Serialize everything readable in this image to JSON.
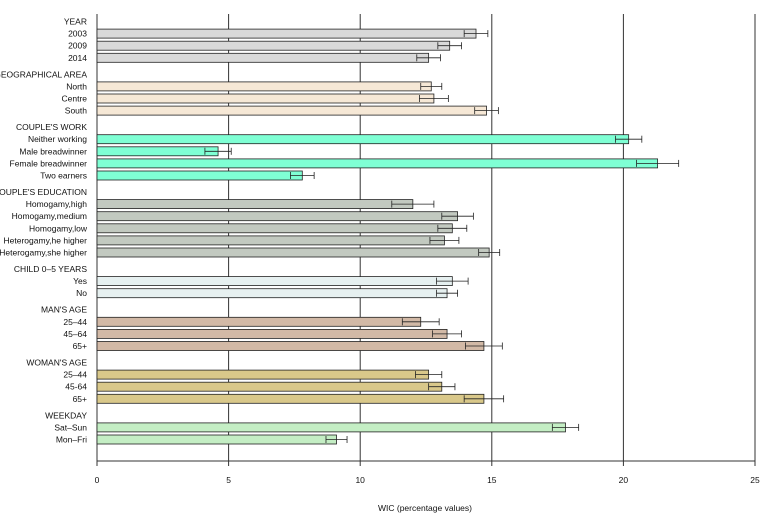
{
  "chart_data": {
    "type": "bar",
    "orientation": "horizontal",
    "xlabel": "WIC (percentage values)",
    "xlim": [
      0,
      25
    ],
    "xticks": [
      0,
      5,
      10,
      15,
      20,
      25
    ],
    "gridlines": [
      5,
      10,
      15,
      20
    ],
    "groups": [
      {
        "title": "YEAR",
        "color": "#d9d9d9",
        "bars": [
          {
            "label": "2003",
            "value": 14.4,
            "err": 0.45
          },
          {
            "label": "2009",
            "value": 13.4,
            "err": 0.45
          },
          {
            "label": "2014",
            "value": 12.6,
            "err": 0.45
          }
        ]
      },
      {
        "title": "GEOGRAPHICAL AREA",
        "color": "#f6e8d6",
        "bars": [
          {
            "label": "North",
            "value": 12.7,
            "err": 0.4
          },
          {
            "label": "Centre",
            "value": 12.8,
            "err": 0.55
          },
          {
            "label": "South",
            "value": 14.8,
            "err": 0.45
          }
        ]
      },
      {
        "title": "COUPLE'S WORK",
        "color": "#7fffd4",
        "bars": [
          {
            "label": "Neither working",
            "value": 20.2,
            "err": 0.5
          },
          {
            "label": "Male breadwinner",
            "value": 4.6,
            "err": 0.5
          },
          {
            "label": "Female breadwinner",
            "value": 21.3,
            "err": 0.8
          },
          {
            "label": "Two earners",
            "value": 7.8,
            "err": 0.45
          }
        ]
      },
      {
        "title": "COUPLE'S EDUCATION",
        "color": "#c2c9c0",
        "bars": [
          {
            "label": "Homogamy,high",
            "value": 12.0,
            "err": 0.8
          },
          {
            "label": "Homogamy,medium",
            "value": 13.7,
            "err": 0.6
          },
          {
            "label": "Homogamy,low",
            "value": 13.5,
            "err": 0.55
          },
          {
            "label": "Heterogamy,he higher",
            "value": 13.2,
            "err": 0.55
          },
          {
            "label": "Heterogamy,she higher",
            "value": 14.9,
            "err": 0.4
          }
        ]
      },
      {
        "title": "CHILD 0–5 YEARS",
        "color": "#e6f0f0",
        "bars": [
          {
            "label": "Yes",
            "value": 13.5,
            "err": 0.6
          },
          {
            "label": "No",
            "value": 13.3,
            "err": 0.4
          }
        ]
      },
      {
        "title": "MAN'S AGE",
        "color": "#d2b9a6",
        "bars": [
          {
            "label": "25–44",
            "value": 12.3,
            "err": 0.7
          },
          {
            "label": "45–64",
            "value": 13.3,
            "err": 0.55
          },
          {
            "label": "65+",
            "value": 14.7,
            "err": 0.7
          }
        ]
      },
      {
        "title": "WOMAN'S AGE",
        "color": "#d9c88a",
        "bars": [
          {
            "label": "25–44",
            "value": 12.6,
            "err": 0.5
          },
          {
            "label": "45-64",
            "value": 13.1,
            "err": 0.5
          },
          {
            "label": "65+",
            "value": 14.7,
            "err": 0.75
          }
        ]
      },
      {
        "title": "WEEKDAY",
        "color": "#c4eec4",
        "bars": [
          {
            "label": "Sat–Sun",
            "value": 17.8,
            "err": 0.5
          },
          {
            "label": "Mon–Fri",
            "value": 9.1,
            "err": 0.4
          }
        ]
      }
    ]
  }
}
